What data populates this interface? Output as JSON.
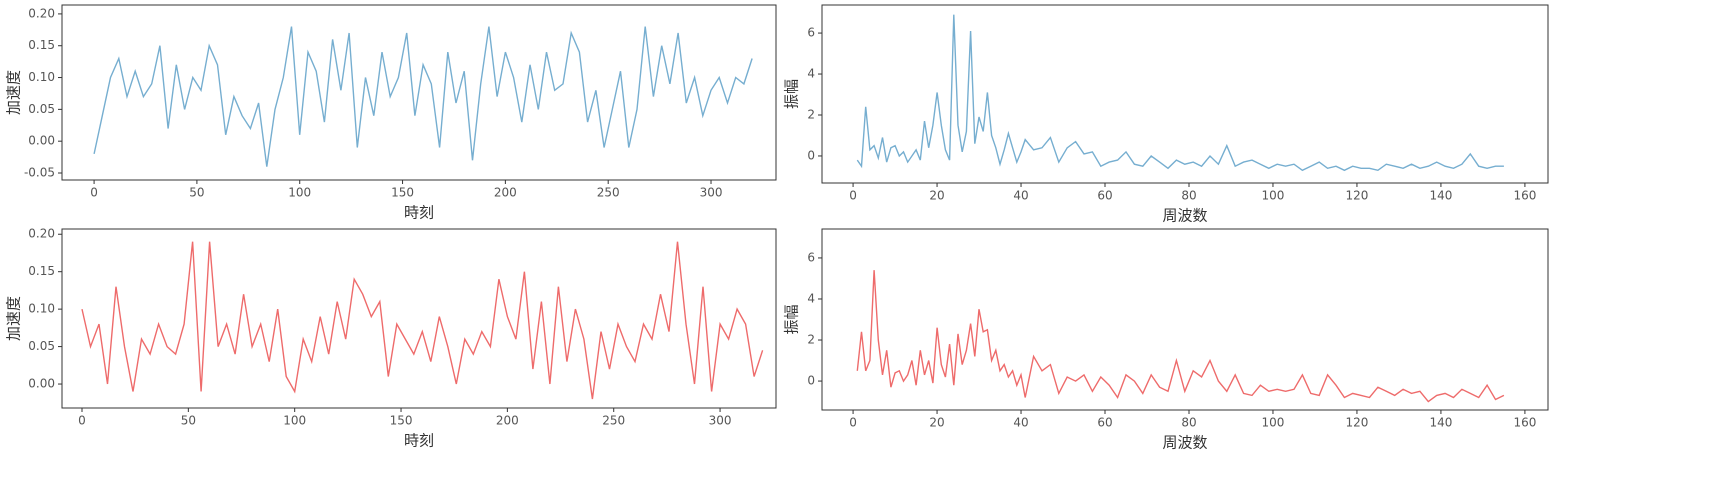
{
  "chart_data": [
    {
      "type": "line",
      "xlabel": "時刻",
      "ylabel": "加速度",
      "color": "#76aed0",
      "xlim": [
        -15.6,
        331.6
      ],
      "ylim": [
        -0.061,
        0.214
      ],
      "xticks": [
        0,
        50,
        100,
        150,
        200,
        250,
        300
      ],
      "yticks": [
        -0.05,
        {
          "value": 0,
          "label": "0.00"
        },
        0.05,
        {
          "value": 0.1,
          "label": "0.10"
        },
        0.15,
        {
          "value": 0.2,
          "label": "0.20"
        }
      ],
      "x": [
        0,
        4,
        8,
        12,
        16,
        20,
        24,
        28,
        32,
        36,
        40,
        44,
        48,
        52,
        56,
        60,
        64,
        68,
        72,
        76,
        80,
        84,
        88,
        92,
        96,
        100,
        104,
        108,
        112,
        116,
        120,
        124,
        128,
        132,
        136,
        140,
        144,
        148,
        152,
        156,
        160,
        164,
        168,
        172,
        176,
        180,
        184,
        188,
        192,
        196,
        200,
        204,
        208,
        212,
        216,
        220,
        224,
        228,
        232,
        236,
        240,
        244,
        248,
        252,
        256,
        260,
        264,
        268,
        272,
        276,
        280,
        284,
        288,
        292,
        296,
        300,
        304,
        308,
        312,
        316,
        320
      ],
      "values": [
        -0.02,
        0.04,
        0.1,
        0.13,
        0.07,
        0.11,
        0.07,
        0.09,
        0.15,
        0.02,
        0.12,
        0.05,
        0.1,
        0.08,
        0.15,
        0.12,
        0.01,
        0.07,
        0.04,
        0.02,
        0.06,
        -0.04,
        0.05,
        0.1,
        0.18,
        0.01,
        0.14,
        0.11,
        0.03,
        0.16,
        0.08,
        0.17,
        -0.01,
        0.1,
        0.04,
        0.14,
        0.07,
        0.1,
        0.17,
        0.04,
        0.12,
        0.09,
        -0.01,
        0.14,
        0.06,
        0.11,
        -0.03,
        0.09,
        0.18,
        0.07,
        0.14,
        0.1,
        0.03,
        0.12,
        0.05,
        0.14,
        0.08,
        0.09,
        0.17,
        0.14,
        0.03,
        0.08,
        -0.01,
        0.05,
        0.11,
        -0.01,
        0.05,
        0.18,
        0.07,
        0.15,
        0.09,
        0.17,
        0.06,
        0.1,
        0.04,
        0.08,
        0.1,
        0.06,
        0.1,
        0.09,
        0.13
      ]
    },
    {
      "type": "line",
      "xlabel": "周波数",
      "ylabel": "振幅",
      "color": "#76aed0",
      "xlim": [
        -7.4,
        165.5
      ],
      "ylim": [
        -1.32,
        7.37
      ],
      "xticks": [
        0,
        20,
        40,
        60,
        80,
        100,
        120,
        140,
        160
      ],
      "yticks": [
        0,
        2,
        4,
        6
      ],
      "x": [
        1,
        2,
        3,
        4,
        5,
        6,
        7,
        8,
        9,
        10,
        11,
        12,
        13,
        14,
        15,
        16,
        17,
        18,
        19,
        20,
        21,
        22,
        23,
        24,
        25,
        26,
        27,
        28,
        29,
        30,
        31,
        32,
        33,
        34,
        35,
        36,
        37,
        38,
        39,
        40,
        41,
        43,
        45,
        47,
        49,
        51,
        53,
        55,
        57,
        59,
        61,
        63,
        65,
        67,
        69,
        71,
        73,
        75,
        77,
        79,
        81,
        83,
        85,
        87,
        89,
        91,
        93,
        95,
        97,
        99,
        101,
        103,
        105,
        107,
        109,
        111,
        113,
        115,
        117,
        119,
        121,
        123,
        125,
        127,
        129,
        131,
        133,
        135,
        137,
        139,
        141,
        143,
        145,
        147,
        149,
        151,
        153,
        155
      ],
      "values": [
        -0.2,
        -0.5,
        2.4,
        0.3,
        0.5,
        -0.1,
        0.9,
        -0.3,
        0.4,
        0.5,
        0.0,
        0.2,
        -0.3,
        0.0,
        0.3,
        -0.2,
        1.7,
        0.4,
        1.5,
        3.1,
        1.5,
        0.3,
        -0.2,
        6.9,
        1.5,
        0.2,
        1.2,
        6.1,
        0.6,
        1.9,
        1.2,
        3.1,
        1.0,
        0.4,
        -0.4,
        0.3,
        1.1,
        0.4,
        -0.3,
        0.2,
        0.8,
        0.3,
        0.4,
        0.9,
        -0.3,
        0.4,
        0.7,
        0.1,
        0.2,
        -0.5,
        -0.3,
        -0.2,
        0.2,
        -0.4,
        -0.5,
        0.0,
        -0.3,
        -0.6,
        -0.2,
        -0.4,
        -0.3,
        -0.5,
        0.0,
        -0.4,
        0.5,
        -0.5,
        -0.3,
        -0.2,
        -0.4,
        -0.6,
        -0.4,
        -0.5,
        -0.4,
        -0.7,
        -0.5,
        -0.3,
        -0.6,
        -0.5,
        -0.7,
        -0.5,
        -0.6,
        -0.6,
        -0.7,
        -0.4,
        -0.5,
        -0.6,
        -0.4,
        -0.6,
        -0.5,
        -0.3,
        -0.5,
        -0.6,
        -0.4,
        0.1,
        -0.5,
        -0.6,
        -0.5,
        -0.5
      ]
    },
    {
      "type": "line",
      "xlabel": "時刻",
      "ylabel": "加速度",
      "color": "#ee6b6b",
      "xlim": [
        -9.4,
        326.3
      ],
      "ylim": [
        -0.032,
        0.207
      ],
      "xticks": [
        0,
        50,
        100,
        150,
        200,
        250,
        300
      ],
      "yticks": [
        {
          "value": 0,
          "label": "0.00"
        },
        0.05,
        {
          "value": 0.1,
          "label": "0.10"
        },
        0.15,
        {
          "value": 0.2,
          "label": "0.20"
        }
      ],
      "x": [
        0,
        4,
        8,
        12,
        16,
        20,
        24,
        28,
        32,
        36,
        40,
        44,
        48,
        52,
        56,
        60,
        64,
        68,
        72,
        76,
        80,
        84,
        88,
        92,
        96,
        100,
        104,
        108,
        112,
        116,
        120,
        124,
        128,
        132,
        136,
        140,
        144,
        148,
        152,
        156,
        160,
        164,
        168,
        172,
        176,
        180,
        184,
        188,
        192,
        196,
        200,
        204,
        208,
        212,
        216,
        220,
        224,
        228,
        232,
        236,
        240,
        244,
        248,
        252,
        256,
        260,
        264,
        268,
        272,
        276,
        280,
        284,
        288,
        292,
        296,
        300,
        304,
        308,
        312,
        316,
        320
      ],
      "values": [
        0.1,
        0.05,
        0.08,
        0.0,
        0.13,
        0.05,
        -0.01,
        0.06,
        0.04,
        0.08,
        0.05,
        0.04,
        0.08,
        0.19,
        -0.01,
        0.19,
        0.05,
        0.08,
        0.04,
        0.12,
        0.05,
        0.08,
        0.03,
        0.1,
        0.01,
        -0.01,
        0.06,
        0.03,
        0.09,
        0.04,
        0.11,
        0.06,
        0.14,
        0.12,
        0.09,
        0.11,
        0.01,
        0.08,
        0.06,
        0.04,
        0.07,
        0.03,
        0.09,
        0.05,
        0.0,
        0.06,
        0.04,
        0.07,
        0.05,
        0.14,
        0.09,
        0.06,
        0.15,
        0.02,
        0.11,
        0.0,
        0.13,
        0.03,
        0.1,
        0.06,
        -0.02,
        0.07,
        0.02,
        0.08,
        0.05,
        0.03,
        0.08,
        0.06,
        0.12,
        0.07,
        0.19,
        0.08,
        0.0,
        0.13,
        -0.01,
        0.08,
        0.06,
        0.1,
        0.08,
        0.01,
        0.045
      ]
    },
    {
      "type": "line",
      "xlabel": "周波数",
      "ylabel": "振幅",
      "color": "#ee6b6b",
      "xlim": [
        -7.4,
        165.5
      ],
      "ylim": [
        -1.41,
        7.41
      ],
      "xticks": [
        0,
        20,
        40,
        60,
        80,
        100,
        120,
        140,
        160
      ],
      "yticks": [
        0,
        2,
        4,
        6
      ],
      "x": [
        1,
        2,
        3,
        4,
        5,
        6,
        7,
        8,
        9,
        10,
        11,
        12,
        13,
        14,
        15,
        16,
        17,
        18,
        19,
        20,
        21,
        22,
        23,
        24,
        25,
        26,
        27,
        28,
        29,
        30,
        31,
        32,
        33,
        34,
        35,
        36,
        37,
        38,
        39,
        40,
        41,
        43,
        45,
        47,
        49,
        51,
        53,
        55,
        57,
        59,
        61,
        63,
        65,
        67,
        69,
        71,
        73,
        75,
        77,
        79,
        81,
        83,
        85,
        87,
        89,
        91,
        93,
        95,
        97,
        99,
        101,
        103,
        105,
        107,
        109,
        111,
        113,
        115,
        117,
        119,
        121,
        123,
        125,
        127,
        129,
        131,
        133,
        135,
        137,
        139,
        141,
        143,
        145,
        147,
        149,
        151,
        153,
        155
      ],
      "values": [
        0.5,
        2.4,
        0.5,
        1.0,
        5.4,
        2.0,
        0.3,
        1.5,
        -0.3,
        0.4,
        0.5,
        0.0,
        0.3,
        1.0,
        -0.2,
        1.5,
        0.3,
        1.0,
        -0.1,
        2.6,
        0.8,
        0.2,
        1.8,
        -0.2,
        2.3,
        0.8,
        1.5,
        2.8,
        1.2,
        3.5,
        2.4,
        2.5,
        1.0,
        1.5,
        0.5,
        0.8,
        0.2,
        0.5,
        -0.2,
        0.3,
        -0.8,
        1.2,
        0.5,
        0.8,
        -0.6,
        0.2,
        0.0,
        0.3,
        -0.5,
        0.2,
        -0.2,
        -0.8,
        0.3,
        0.0,
        -0.6,
        0.3,
        -0.3,
        -0.5,
        1.0,
        -0.5,
        0.5,
        0.2,
        1.0,
        0.0,
        -0.5,
        0.3,
        -0.6,
        -0.7,
        -0.2,
        -0.5,
        -0.4,
        -0.5,
        -0.4,
        0.3,
        -0.6,
        -0.7,
        0.3,
        -0.2,
        -0.8,
        -0.6,
        -0.7,
        -0.8,
        -0.3,
        -0.5,
        -0.7,
        -0.4,
        -0.6,
        -0.5,
        -1.0,
        -0.7,
        -0.6,
        -0.8,
        -0.4,
        -0.6,
        -0.8,
        -0.2,
        -0.9,
        -0.7
      ]
    }
  ]
}
